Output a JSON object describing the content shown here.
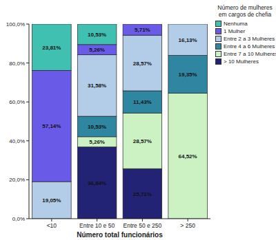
{
  "chart_data": {
    "type": "bar",
    "stacked": true,
    "data_labels": true,
    "x_label": "Número total funcionários",
    "legend_title": "Número de mulheres em cargos de chefia",
    "legend": "right",
    "categories": [
      "<10",
      "Entre 10 e 50",
      "Entre 50 e 250",
      "> 250"
    ],
    "ylim": [
      0,
      100
    ],
    "yticks": [
      {
        "value": 0,
        "label": "0,0%"
      },
      {
        "value": 20,
        "label": "20,0%"
      },
      {
        "value": 40,
        "label": "40,0%"
      },
      {
        "value": 60,
        "label": "60,0%"
      },
      {
        "value": 80,
        "label": "80,0%"
      },
      {
        "value": 100,
        "label": "100,0%"
      }
    ],
    "series": [
      {
        "name": "> 10 Mulheres",
        "color": "#232375",
        "values": [
          0,
          36.84,
          25.71,
          0
        ],
        "value_labels": [
          null,
          "36,84%",
          "25,71%",
          null
        ]
      },
      {
        "name": "Entre 7 a 10 Mulheres",
        "color": "#ccf2c4",
        "values": [
          0,
          5.26,
          28.57,
          64.52
        ],
        "value_labels": [
          null,
          "5,26%",
          "28,57%",
          "64,52%"
        ]
      },
      {
        "name": "Entre 4 a 6 Mulheres",
        "color": "#2e86a0",
        "values": [
          0,
          10.53,
          11.43,
          19.35
        ],
        "value_labels": [
          null,
          "10,53%",
          "11,43%",
          "19,35%"
        ]
      },
      {
        "name": "Entre 2 a 3 Mulheres",
        "color": "#b3cde8",
        "values": [
          19.05,
          31.58,
          28.57,
          16.13
        ],
        "value_labels": [
          "19,05%",
          "31,58%",
          "28,57%",
          "16,13%"
        ]
      },
      {
        "name": "1 Mulher",
        "color": "#6a5ae8",
        "values": [
          57.14,
          5.26,
          5.71,
          0
        ],
        "value_labels": [
          "57,14%",
          "5,26%",
          "5,71%",
          null
        ]
      },
      {
        "name": "Nenhuma",
        "color": "#40c0b0",
        "values": [
          23.81,
          10.53,
          0,
          0
        ],
        "value_labels": [
          "23,81%",
          "10,53%",
          null,
          null
        ]
      }
    ]
  }
}
